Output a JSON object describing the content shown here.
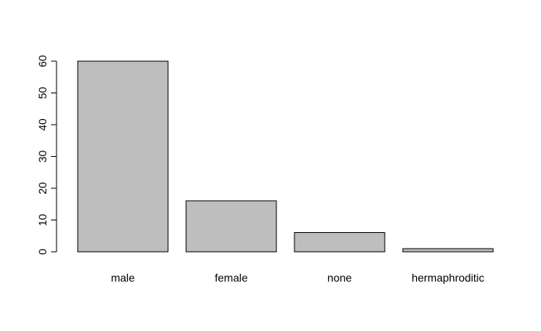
{
  "chart_data": {
    "type": "bar",
    "categories": [
      "male",
      "female",
      "none",
      "hermaphroditic"
    ],
    "values": [
      60,
      16,
      6,
      1
    ],
    "ylim": [
      0,
      60
    ],
    "yticks": [
      0,
      10,
      20,
      30,
      40,
      50,
      60
    ],
    "bar_color": "#bebebe",
    "grid": false
  }
}
